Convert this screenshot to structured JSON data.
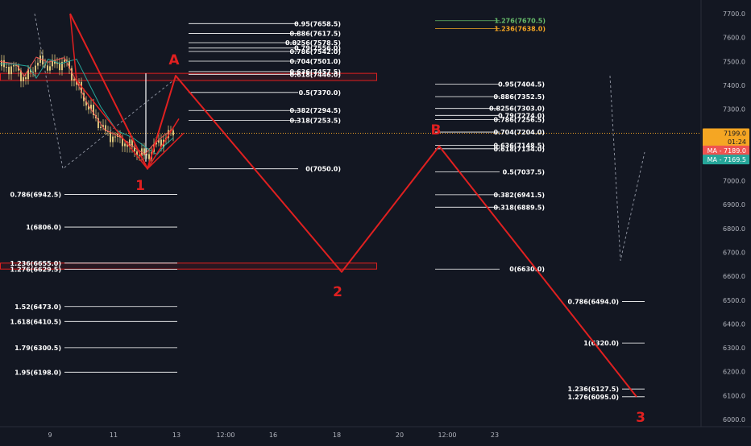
{
  "colors": {
    "background": "#131722",
    "wave": "#e02020",
    "fib": "#ffffff",
    "price_line": "#f5a623",
    "candle": "#d9c27a",
    "ma1": "#ef5350",
    "ma2": "#26a69a",
    "axis_text": "#b2b5be",
    "ext_green": "#66bb6a",
    "ext_orange": "#f5a623"
  },
  "chart_data": {
    "type": "line",
    "title": "",
    "x_ticks": [
      "9",
      "11",
      "13",
      "12:00",
      "16",
      "18",
      "20",
      "12:00",
      "23"
    ],
    "y_ticks": [
      "7700.0",
      "7600.0",
      "7500.0",
      "7400.0",
      "7300.0",
      "7200.0",
      "7100.0",
      "7000.0",
      "6900.0",
      "6800.0",
      "6700.0",
      "6600.0",
      "6500.0",
      "6400.0",
      "6300.0",
      "6200.0",
      "6100.0",
      "6000.0"
    ],
    "ylim": [
      5985,
      7745
    ],
    "price_tags": [
      {
        "label": "7199.0",
        "value": 7199.0,
        "color": "#f5a623",
        "text_color": "#131722"
      },
      {
        "label": "01:24",
        "value": 7163,
        "color": "#f5a623",
        "text_color": "#131722"
      },
      {
        "label": "MA - 7189.0",
        "value": 7127,
        "color": "#ef5350",
        "text_color": "#ffffff"
      },
      {
        "label": "MA - 7169.5",
        "value": 7089,
        "color": "#26a69a",
        "text_color": "#ffffff"
      }
    ],
    "current_price": 7199.0,
    "wave_points": [
      {
        "label": "",
        "value": 7700
      },
      {
        "label": "1",
        "value": 7050
      },
      {
        "label": "A",
        "value": 7440
      },
      {
        "label": "2",
        "value": 6618
      },
      {
        "label": "B",
        "value": 7145
      },
      {
        "label": "3",
        "value": 6095
      }
    ],
    "wave_labels": [
      "A",
      "1",
      "2",
      "B",
      "3"
    ],
    "fib_set_a": [
      {
        "label": "0.95(7658.5)",
        "value": 7658.5
      },
      {
        "label": "0.886(7617.5)",
        "value": 7617.5
      },
      {
        "label": "0.8256(7578.5)",
        "value": 7578.5
      },
      {
        "label": "0.79(7556.0)",
        "value": 7556.0
      },
      {
        "label": "0.786(7542.0)",
        "value": 7542.0
      },
      {
        "label": "0.704(7501.0)",
        "value": 7501.0
      },
      {
        "label": "0.636(7457.5)",
        "value": 7457.5
      },
      {
        "label": "0.618(7446.0)",
        "value": 7446.0
      },
      {
        "label": "0.5(7370.0)",
        "value": 7370.0
      },
      {
        "label": "0.382(7294.5)",
        "value": 7294.5
      },
      {
        "label": "0.318(7253.5)",
        "value": 7253.5
      },
      {
        "label": "0(7050.0)",
        "value": 7050.0
      }
    ],
    "fib_set_left": [
      {
        "label": "0.786(6942.5)",
        "value": 6942.5
      },
      {
        "label": "1(6806.0)",
        "value": 6806.0
      },
      {
        "label": "1.236(6655.0)",
        "value": 6655.0
      },
      {
        "label": "1.276(6629.5)",
        "value": 6629.5
      },
      {
        "label": "1.52(6473.0)",
        "value": 6473.0
      },
      {
        "label": "1.618(6410.5)",
        "value": 6410.5
      },
      {
        "label": "1.79(6300.5)",
        "value": 6300.5
      },
      {
        "label": "1.95(6198.0)",
        "value": 6198.0
      }
    ],
    "fib_set_b": [
      {
        "label": "0.95(7404.5)",
        "value": 7404.5
      },
      {
        "label": "0.886(7352.5)",
        "value": 7352.5
      },
      {
        "label": "0.8256(7303.0)",
        "value": 7303.0
      },
      {
        "label": "0.79(7274.0)",
        "value": 7274.0
      },
      {
        "label": "0.786(7256.5)",
        "value": 7256.5
      },
      {
        "label": "0.704(7204.0)",
        "value": 7204.0
      },
      {
        "label": "0.636(7148.5)",
        "value": 7148.5
      },
      {
        "label": "0.618(7134.0)",
        "value": 7134.0
      },
      {
        "label": "0.5(7037.5)",
        "value": 7037.5
      },
      {
        "label": "0.382(6941.5)",
        "value": 6941.5
      },
      {
        "label": "0.318(6889.5)",
        "value": 6889.5
      },
      {
        "label": "0(6630.0)",
        "value": 6630.0
      }
    ],
    "fib_set_c": [
      {
        "label": "0.786(6494.0)",
        "value": 6494.0
      },
      {
        "label": "1(6320.0)",
        "value": 6320.0
      },
      {
        "label": "1.236(6127.5)",
        "value": 6127.5
      },
      {
        "label": "1.276(6095.0)",
        "value": 6095.0
      }
    ],
    "fib_ext_top": [
      {
        "label": "1.276(7670.5)",
        "value": 7670.5,
        "color": "#66bb6a"
      },
      {
        "label": "1.236(7638.0)",
        "value": 7638.0,
        "color": "#f5a623"
      }
    ],
    "zones": [
      {
        "top": 7450,
        "bottom": 7420
      },
      {
        "top": 6655,
        "bottom": 6630
      }
    ],
    "grid": false
  }
}
